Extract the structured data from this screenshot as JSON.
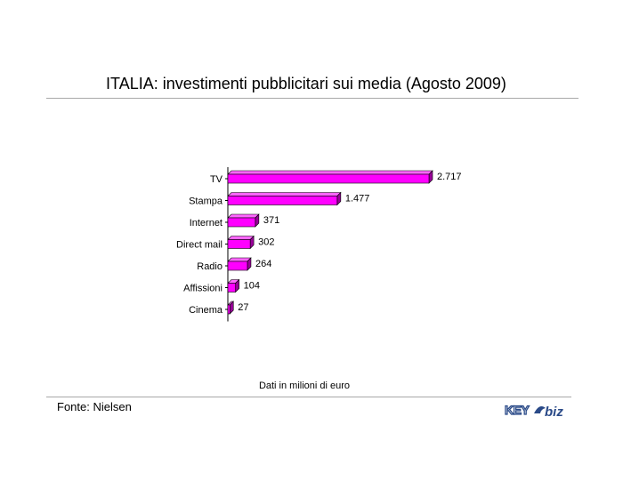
{
  "chart_data": {
    "type": "bar",
    "orientation": "horizontal",
    "title": "ITALIA: investimenti pubblicitari sui media (Agosto 2009)",
    "categories": [
      "TV",
      "Stampa",
      "Internet",
      "Direct mail",
      "Radio",
      "Affissioni",
      "Cinema"
    ],
    "values": [
      2717,
      1477,
      371,
      302,
      264,
      104,
      27
    ],
    "value_labels": [
      "2.717",
      "1.477",
      "371",
      "302",
      "264",
      "104",
      "27"
    ],
    "xlim": [
      0,
      2717
    ],
    "grid": false,
    "legend": "none",
    "note": "Dati in milioni di euro",
    "colors": {
      "bar": "#ff00ff",
      "bar_shade": "#990099",
      "bar_top": "#ff66ff"
    }
  },
  "footer": {
    "source": "Fonte: Nielsen",
    "logo": "KEY4biz"
  }
}
